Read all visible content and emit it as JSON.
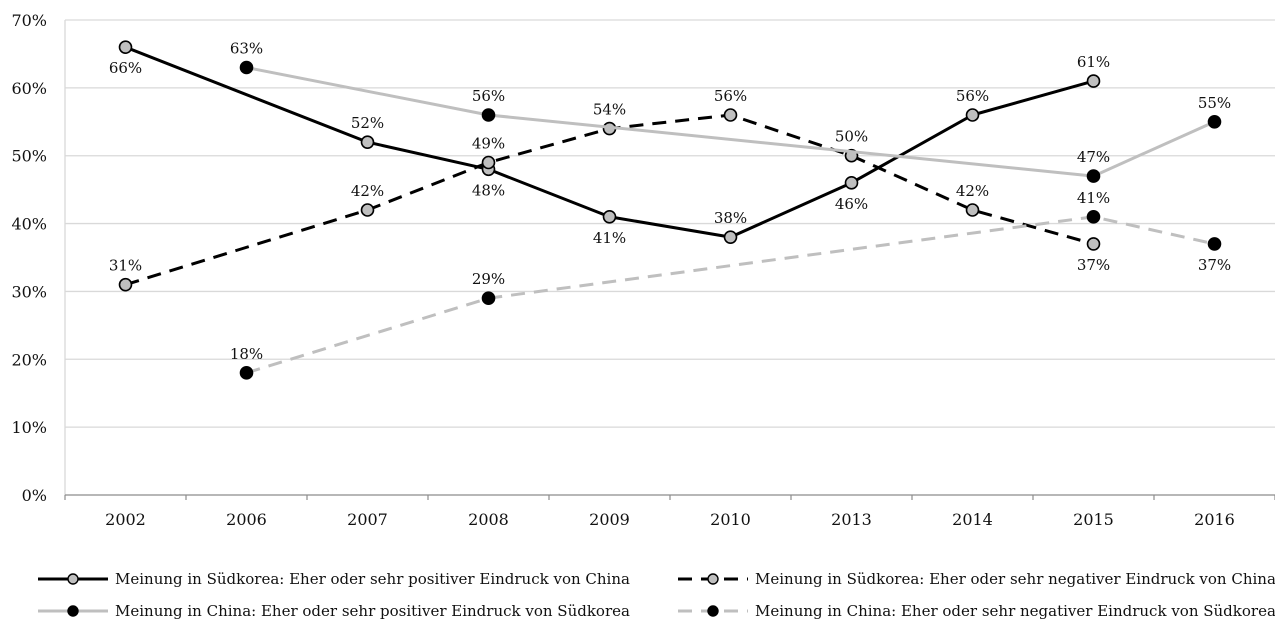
{
  "chart_data": {
    "type": "line",
    "categories": [
      "2002",
      "2006",
      "2007",
      "2008",
      "2009",
      "2010",
      "2013",
      "2014",
      "2015",
      "2016"
    ],
    "ylim": [
      0,
      70
    ],
    "yticks": [
      0,
      10,
      20,
      30,
      40,
      50,
      60,
      70
    ],
    "ytick_labels": [
      "0%",
      "10%",
      "20%",
      "30%",
      "40%",
      "50%",
      "60%",
      "70%"
    ],
    "value_suffix": "%",
    "grid": true,
    "legend_position": "bottom",
    "series": [
      {
        "name": "Meinung in Südkorea: Eher oder sehr positiver Eindruck von China",
        "line_color": "#000000",
        "marker_color": "#bfbfbf",
        "dashed": false,
        "label_side": [
          "below",
          null,
          "above",
          "below",
          "below",
          "above",
          "below",
          "above",
          "above",
          null
        ],
        "values": [
          66,
          null,
          52,
          48,
          41,
          38,
          46,
          56,
          61,
          null
        ]
      },
      {
        "name": "Meinung in Südkorea: Eher oder sehr negativer Eindruck von China",
        "line_color": "#000000",
        "marker_color": "#bfbfbf",
        "dashed": true,
        "label_side": [
          "above",
          null,
          "above",
          "above",
          "above",
          "above",
          "above",
          "above",
          "below",
          null
        ],
        "values": [
          31,
          null,
          42,
          49,
          54,
          56,
          50,
          42,
          37,
          null
        ]
      },
      {
        "name": "Meinung in China: Eher oder sehr positiver Eindruck von Südkorea",
        "line_color": "#bfbfbf",
        "marker_color": "#000000",
        "dashed": false,
        "label_side": [
          null,
          "above",
          null,
          "above",
          null,
          null,
          null,
          null,
          "above",
          "above"
        ],
        "values": [
          null,
          63,
          null,
          56,
          null,
          null,
          null,
          null,
          47,
          55
        ]
      },
      {
        "name": "Meinung in China: Eher oder sehr negativer Eindruck von Südkorea",
        "line_color": "#bfbfbf",
        "marker_color": "#000000",
        "dashed": true,
        "label_side": [
          null,
          "above",
          null,
          "above",
          null,
          null,
          null,
          null,
          "above",
          "below"
        ],
        "values": [
          null,
          18,
          null,
          29,
          null,
          null,
          null,
          null,
          41,
          37
        ]
      }
    ]
  }
}
